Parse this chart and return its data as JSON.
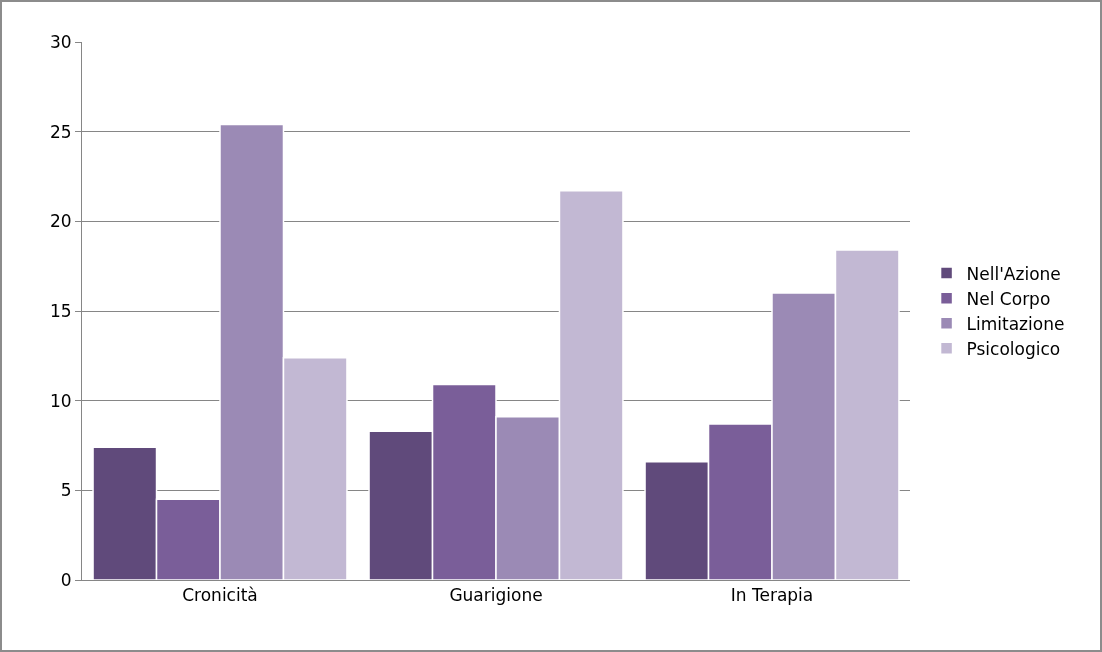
{
  "chart_data": {
    "type": "bar",
    "categories": [
      "Cronicità",
      "Guarigione",
      "In Terapia"
    ],
    "series": [
      {
        "name": "Nell'Azione",
        "color": "#604a7b",
        "values": [
          7.4,
          8.3,
          6.6
        ]
      },
      {
        "name": "Nel Corpo",
        "color": "#7a5e99",
        "values": [
          4.5,
          10.9,
          8.7
        ]
      },
      {
        "name": "Limitazione",
        "color": "#9b8ab5",
        "values": [
          25.4,
          9.1,
          16
        ]
      },
      {
        "name": "Psicologico",
        "color": "#c2b8d3",
        "values": [
          12.4,
          21.7,
          18.4
        ]
      }
    ],
    "ylim": [
      0,
      30
    ],
    "yticks": [
      0,
      5,
      10,
      15,
      20,
      25,
      30
    ],
    "grid": "y",
    "legend": "right"
  }
}
